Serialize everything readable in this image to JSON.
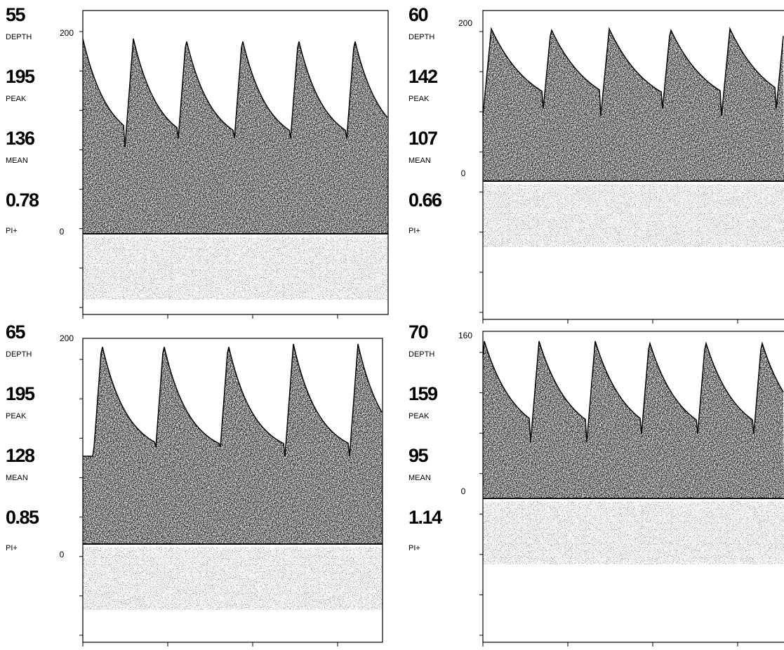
{
  "panels": [
    {
      "readouts": [
        {
          "value": "55",
          "label": "DEPTH"
        },
        {
          "value": "195",
          "label": "PEAK"
        },
        {
          "value": "136",
          "label": "MEAN"
        },
        {
          "value": "0.78",
          "label": "PI+"
        }
      ],
      "axis_labels": [
        "200",
        "0"
      ]
    },
    {
      "readouts": [
        {
          "value": "60",
          "label": "DEPTH"
        },
        {
          "value": "142",
          "label": "PEAK"
        },
        {
          "value": "107",
          "label": "MEAN"
        },
        {
          "value": "0.66",
          "label": "PI+"
        }
      ],
      "axis_labels": [
        "200",
        "0"
      ]
    },
    {
      "readouts": [
        {
          "value": "65",
          "label": "DEPTH"
        },
        {
          "value": "195",
          "label": "PEAK"
        },
        {
          "value": "128",
          "label": "MEAN"
        },
        {
          "value": "0.85",
          "label": "PI+"
        }
      ],
      "axis_labels": [
        "200",
        "0"
      ]
    },
    {
      "readouts": [
        {
          "value": "70",
          "label": "DEPTH"
        },
        {
          "value": "159",
          "label": "PEAK"
        },
        {
          "value": "95",
          "label": "MEAN"
        },
        {
          "value": "1.14",
          "label": "PI+"
        }
      ],
      "axis_labels": [
        "160",
        "0"
      ]
    }
  ]
}
